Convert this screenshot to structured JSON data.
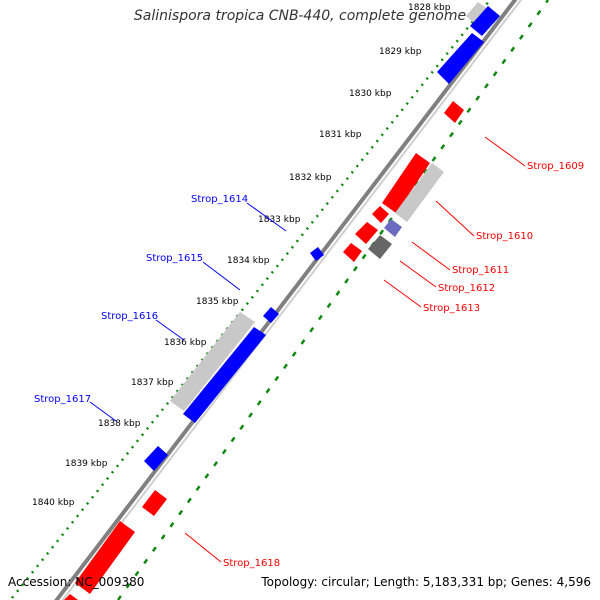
{
  "title": "Salinispora tropica CNB-440, complete genome",
  "footer": {
    "accession": "Accession: NC_009380",
    "summary": "Topology: circular; Length: 5,183,331 bp; Genes: 4,596"
  },
  "colors": {
    "forward_gene": "#0000ff",
    "reverse_gene": "#ff0000",
    "pseudo_gene": "#c8c8c8",
    "tick_dots": "#118811",
    "backbone": "#808080"
  },
  "scale_labels": [
    "1828 kbp",
    "1829 kbp",
    "1830 kbp",
    "1831 kbp",
    "1832 kbp",
    "1833 kbp",
    "1834 kbp",
    "1835 kbp",
    "1836 kbp",
    "1837 kbp",
    "1838 kbp",
    "1839 kbp",
    "1840 kbp"
  ],
  "gene_labels": [
    {
      "name": "Strop_1609",
      "strand": "reverse"
    },
    {
      "name": "Strop_1610",
      "strand": "reverse"
    },
    {
      "name": "Strop_1611",
      "strand": "reverse"
    },
    {
      "name": "Strop_1612",
      "strand": "reverse"
    },
    {
      "name": "Strop_1613",
      "strand": "reverse"
    },
    {
      "name": "Strop_1614",
      "strand": "forward"
    },
    {
      "name": "Strop_1615",
      "strand": "forward"
    },
    {
      "name": "Strop_1616",
      "strand": "forward"
    },
    {
      "name": "Strop_1617",
      "strand": "forward"
    },
    {
      "name": "Strop_1618",
      "strand": "reverse"
    }
  ]
}
